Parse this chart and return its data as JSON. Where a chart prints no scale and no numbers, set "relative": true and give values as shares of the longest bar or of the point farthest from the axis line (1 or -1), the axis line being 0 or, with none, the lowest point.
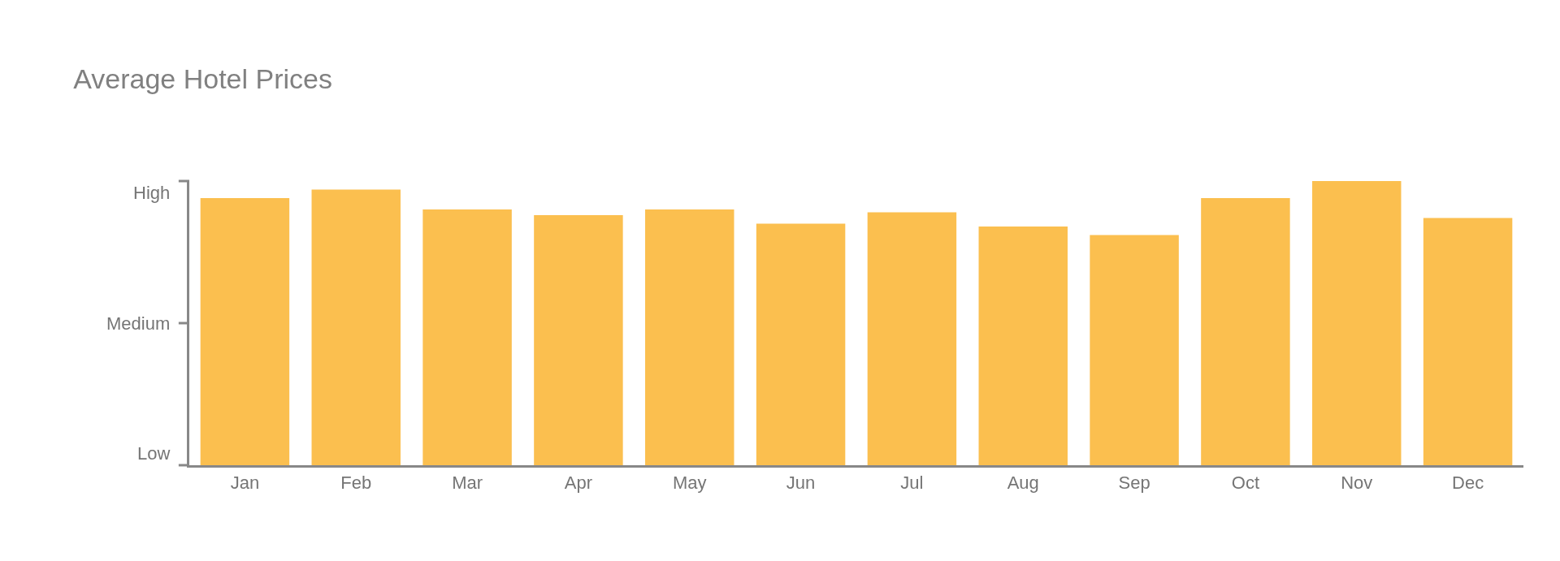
{
  "chart_data": {
    "type": "bar",
    "title": "Average Hotel Prices",
    "categories": [
      "Jan",
      "Feb",
      "Mar",
      "Apr",
      "May",
      "Jun",
      "Jul",
      "Aug",
      "Sep",
      "Oct",
      "Nov",
      "Dec"
    ],
    "values": [
      0.94,
      0.97,
      0.9,
      0.88,
      0.9,
      0.85,
      0.89,
      0.84,
      0.81,
      0.94,
      1.0,
      0.87
    ],
    "color": "#fbbf4f",
    "relative": true,
    "annotations": [
      "High",
      "Medium",
      "Low"
    ]
  }
}
